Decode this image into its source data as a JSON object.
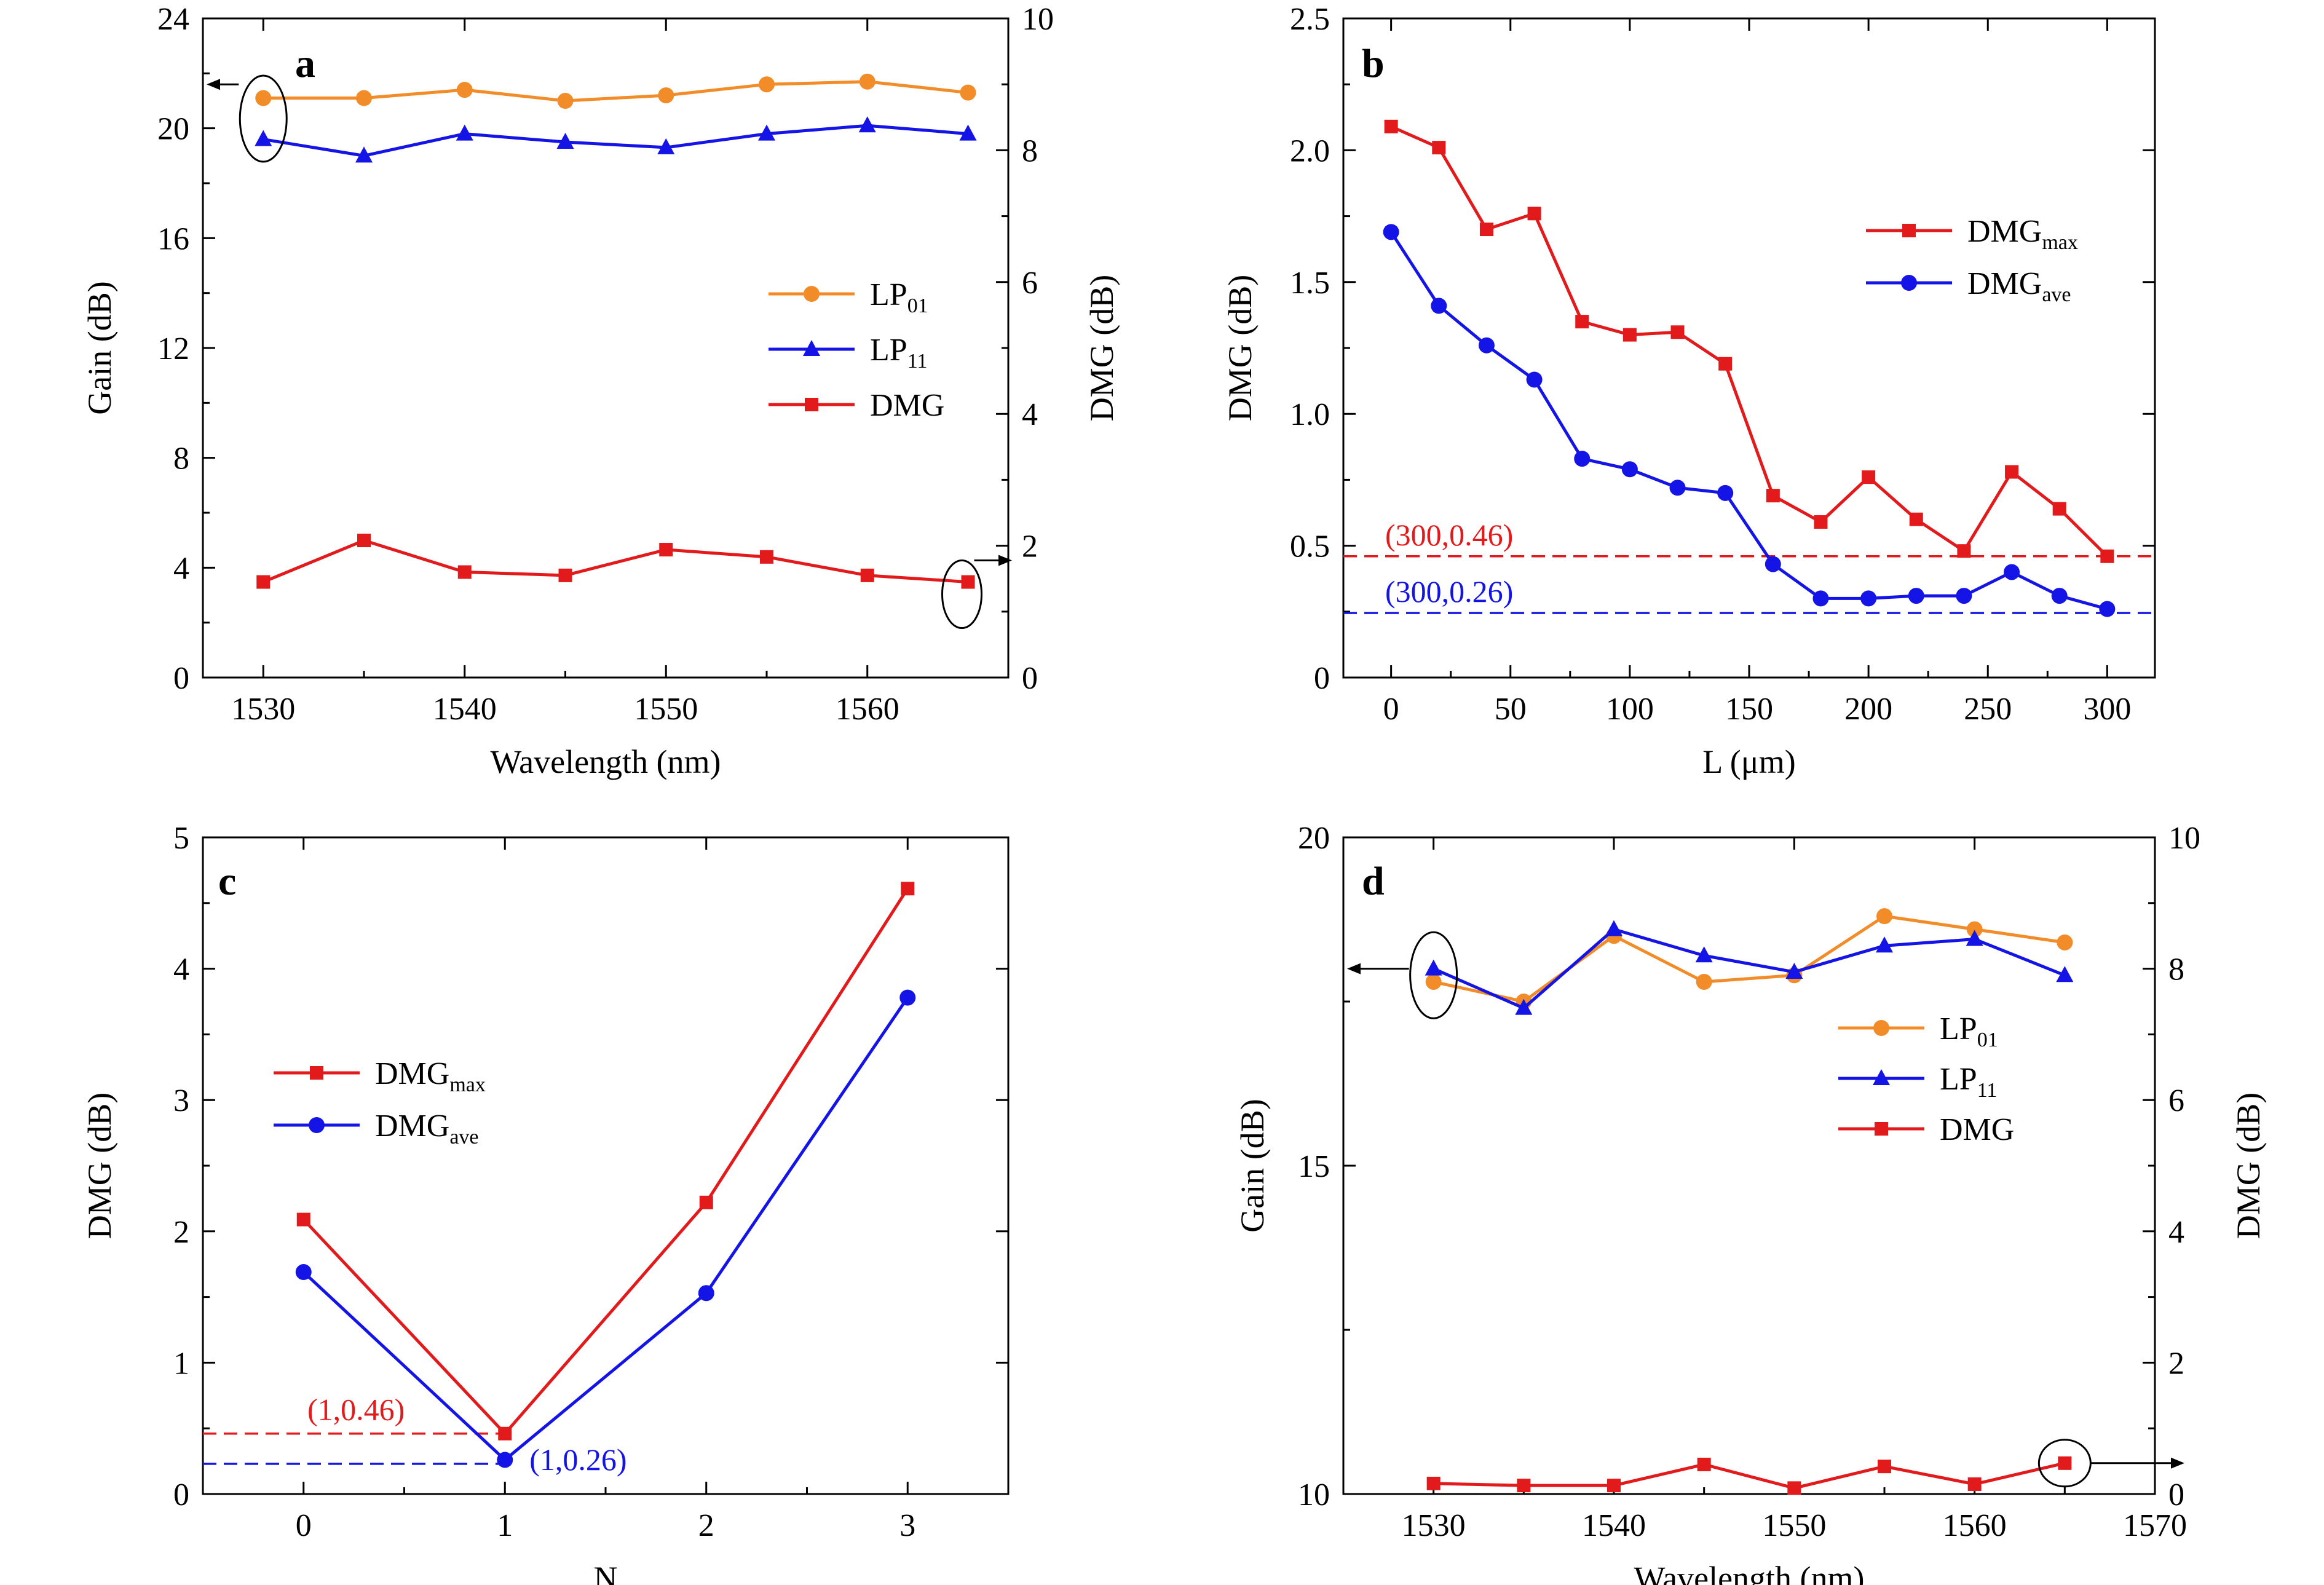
{
  "colors": {
    "orange": "#F28C28",
    "blue": "#1414E6",
    "red": "#E31A1C",
    "black": "#000000"
  },
  "chart_data": [
    {
      "panel": "a",
      "type": "line",
      "xlabel": "Wavelength (nm)",
      "ylabel": "Gain (dB)",
      "ylabel_right": "DMG (dB)",
      "xlim": [
        1527,
        1567
      ],
      "ylim": [
        0,
        24
      ],
      "ylim_right": [
        0,
        10
      ],
      "xticks": [
        "1530",
        "1540",
        "1550",
        "1560"
      ],
      "yticks": [
        "0",
        "4",
        "8",
        "12",
        "16",
        "20",
        "24"
      ],
      "yticks_right": [
        "0",
        "2",
        "4",
        "6",
        "8",
        "10"
      ],
      "legend": "center-right",
      "series": [
        {
          "name": "LP01",
          "label": "LP",
          "sub": "01",
          "axis": "left",
          "marker": "circle",
          "color": "#F28C28",
          "x": [
            1530,
            1535,
            1540,
            1545,
            1550,
            1555,
            1560,
            1565
          ],
          "y": [
            21.1,
            21.1,
            21.4,
            21.0,
            21.2,
            21.6,
            21.7,
            21.3
          ]
        },
        {
          "name": "LP11",
          "label": "LP",
          "sub": "11",
          "axis": "left",
          "marker": "triangle",
          "color": "#1414E6",
          "x": [
            1530,
            1535,
            1540,
            1545,
            1550,
            1555,
            1560,
            1565
          ],
          "y": [
            19.6,
            19.0,
            19.8,
            19.5,
            19.3,
            19.8,
            20.1,
            19.8
          ]
        },
        {
          "name": "DMG",
          "label": "DMG",
          "sub": "",
          "axis": "right",
          "marker": "square",
          "color": "#E31A1C",
          "x": [
            1530,
            1535,
            1540,
            1545,
            1550,
            1555,
            1560,
            1565
          ],
          "y": [
            1.45,
            2.08,
            1.6,
            1.55,
            1.94,
            1.83,
            1.55,
            1.45
          ]
        }
      ]
    },
    {
      "panel": "b",
      "type": "line",
      "xlabel": "L (μm)",
      "ylabel": "DMG (dB)",
      "xlim": [
        -20,
        320
      ],
      "ylim": [
        0,
        2.5
      ],
      "xticks": [
        "0",
        "50",
        "100",
        "150",
        "200",
        "250",
        "300"
      ],
      "yticks": [
        "0",
        "0.5",
        "1.0",
        "1.5",
        "2.0",
        "2.5"
      ],
      "legend": "upper-right",
      "annotations": [
        {
          "text": "(300,0.46)",
          "y": 0.46,
          "color": "#E31A1C"
        },
        {
          "text": "(300,0.26)",
          "y": 0.245,
          "color": "#1414E6"
        }
      ],
      "series": [
        {
          "name": "DMGmax",
          "label": "DMG",
          "sub": "max",
          "marker": "square",
          "color": "#E31A1C",
          "x": [
            0,
            20,
            40,
            60,
            80,
            100,
            120,
            140,
            160,
            180,
            200,
            220,
            240,
            260,
            280,
            300
          ],
          "y": [
            2.09,
            2.01,
            1.7,
            1.76,
            1.35,
            1.3,
            1.31,
            1.19,
            0.69,
            0.59,
            0.76,
            0.6,
            0.48,
            0.78,
            0.64,
            0.46
          ]
        },
        {
          "name": "DMGave",
          "label": "DMG",
          "sub": "ave",
          "marker": "circle",
          "color": "#1414E6",
          "x": [
            0,
            20,
            40,
            60,
            80,
            100,
            120,
            140,
            160,
            180,
            200,
            220,
            240,
            260,
            280,
            300
          ],
          "y": [
            1.69,
            1.41,
            1.26,
            1.13,
            0.83,
            0.79,
            0.72,
            0.7,
            0.43,
            0.3,
            0.3,
            0.31,
            0.31,
            0.4,
            0.31,
            0.26
          ]
        }
      ]
    },
    {
      "panel": "c",
      "type": "line",
      "xlabel": "N",
      "ylabel": "DMG (dB)",
      "xlim": [
        -0.5,
        3.5
      ],
      "ylim": [
        0,
        5
      ],
      "xticks": [
        "0",
        "1",
        "2",
        "3"
      ],
      "yticks": [
        "0",
        "1",
        "2",
        "3",
        "4",
        "5"
      ],
      "legend": "center-left",
      "annotations": [
        {
          "text": "(1,0.46)",
          "y": 0.46,
          "color": "#E31A1C"
        },
        {
          "text": "(1,0.26)",
          "y": 0.23,
          "color": "#1414E6"
        }
      ],
      "series": [
        {
          "name": "DMGmax",
          "label": "DMG",
          "sub": "max",
          "marker": "square",
          "color": "#E31A1C",
          "x": [
            0,
            1,
            2,
            3
          ],
          "y": [
            2.09,
            0.46,
            2.22,
            4.61
          ]
        },
        {
          "name": "DMGave",
          "label": "DMG",
          "sub": "ave",
          "marker": "circle",
          "color": "#1414E6",
          "x": [
            0,
            1,
            2,
            3
          ],
          "y": [
            1.69,
            0.26,
            1.53,
            3.78
          ]
        }
      ]
    },
    {
      "panel": "d",
      "type": "line",
      "xlabel": "Wavelength (nm)",
      "ylabel": "Gain (dB)",
      "ylabel_right": "DMG (dB)",
      "xlim": [
        1525,
        1570
      ],
      "ylim": [
        10,
        20
      ],
      "ylim_right": [
        0,
        10
      ],
      "xticks": [
        "1530",
        "1540",
        "1550",
        "1560",
        "1570"
      ],
      "yticks": [
        "10",
        "15",
        "20"
      ],
      "yticks_right": [
        "0",
        "2",
        "4",
        "6",
        "8",
        "10"
      ],
      "legend": "center-right",
      "series": [
        {
          "name": "LP01",
          "label": "LP",
          "sub": "01",
          "axis": "left",
          "marker": "circle",
          "color": "#F28C28",
          "x": [
            1530,
            1535,
            1540,
            1545,
            1550,
            1555,
            1560,
            1565
          ],
          "y": [
            17.8,
            17.5,
            18.5,
            17.8,
            17.9,
            18.8,
            18.6,
            18.4
          ]
        },
        {
          "name": "LP11",
          "label": "LP",
          "sub": "11",
          "axis": "left",
          "marker": "triangle",
          "color": "#1414E6",
          "x": [
            1530,
            1535,
            1540,
            1545,
            1550,
            1555,
            1560,
            1565
          ],
          "y": [
            18.0,
            17.4,
            18.6,
            18.2,
            17.95,
            18.35,
            18.45,
            17.9
          ]
        },
        {
          "name": "DMG",
          "label": "DMG",
          "sub": "",
          "axis": "right",
          "marker": "square",
          "color": "#E31A1C",
          "x": [
            1530,
            1535,
            1540,
            1545,
            1550,
            1555,
            1560,
            1565
          ],
          "y": [
            0.16,
            0.13,
            0.13,
            0.45,
            0.09,
            0.42,
            0.15,
            0.47
          ]
        }
      ]
    }
  ]
}
